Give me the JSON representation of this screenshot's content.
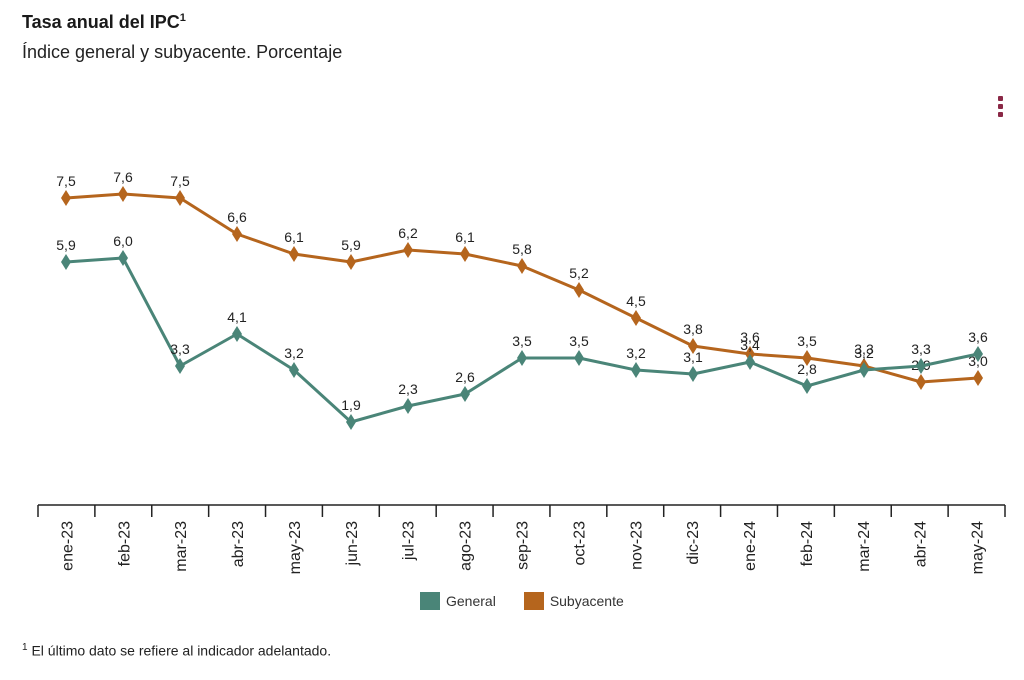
{
  "header": {
    "title": "Tasa anual del IPC",
    "title_sup": "1",
    "subtitle": "Índice general y subyacente. Porcentaje"
  },
  "menu": {
    "icon": "kebab-menu-icon"
  },
  "footnote": {
    "sup": "1",
    "text": "El último dato se refiere al indicador adelantado."
  },
  "chart_data": {
    "type": "line",
    "categories": [
      "ene-23",
      "feb-23",
      "mar-23",
      "abr-23",
      "may-23",
      "jun-23",
      "jul-23",
      "ago-23",
      "sep-23",
      "oct-23",
      "nov-23",
      "dic-23",
      "ene-24",
      "feb-24",
      "mar-24",
      "abr-24",
      "may-24"
    ],
    "series": [
      {
        "name": "General",
        "color": "#4a8578",
        "values": [
          5.9,
          6.0,
          3.3,
          4.1,
          3.2,
          1.9,
          2.3,
          2.6,
          3.5,
          3.5,
          3.2,
          3.1,
          3.4,
          2.8,
          3.2,
          3.3,
          3.6
        ]
      },
      {
        "name": "Subyacente",
        "color": "#b5651d",
        "values": [
          7.5,
          7.6,
          7.5,
          6.6,
          6.1,
          5.9,
          6.2,
          6.1,
          5.8,
          5.2,
          4.5,
          3.8,
          3.6,
          3.5,
          3.3,
          2.9,
          3.0
        ]
      }
    ],
    "labels": {
      "General": [
        "5,9",
        "6,0",
        "3,3",
        "4,1",
        "3,2",
        "1,9",
        "2,3",
        "2,6",
        "3,5",
        "3,5",
        "3,2",
        "3,1",
        "3,4",
        "2,8",
        "3,2",
        "3,3",
        "3,6"
      ],
      "Subyacente": [
        "7,5",
        "7,6",
        "7,5",
        "6,6",
        "6,1",
        "5,9",
        "6,2",
        "6,1",
        "5,8",
        "5,2",
        "4,5",
        "3,8",
        "3,6",
        "3,5",
        "3,3",
        "2,9",
        "3,0"
      ]
    },
    "ylim": [
      0,
      9
    ],
    "grid": false,
    "legend": "bottom-center"
  }
}
